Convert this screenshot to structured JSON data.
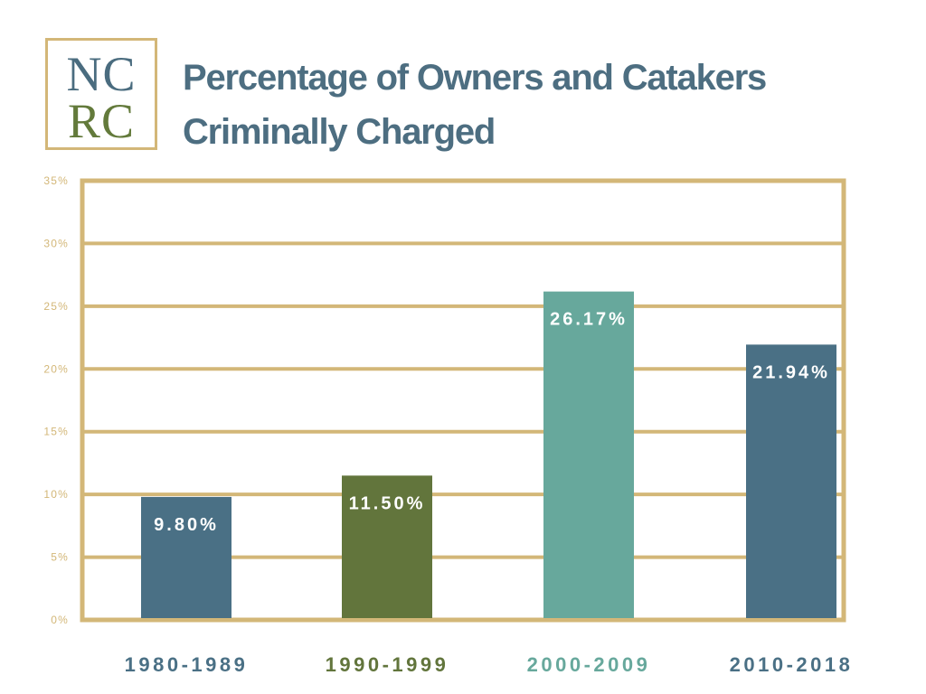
{
  "logo": {
    "line1": "NC",
    "line2": "RC"
  },
  "colors": {
    "gold": "#d3b778",
    "blue": "#4a7085",
    "olive": "#62753c",
    "teal": "#67a89c",
    "title": "#4d6e81",
    "label_white": "#ffffff"
  },
  "chart_data": {
    "type": "bar",
    "title": "Percentage of Owners and Catakers Criminally Charged",
    "title_lines": [
      "Percentage of Owners and Catakers",
      "Criminally Charged"
    ],
    "xlabel": "",
    "ylabel": "",
    "categories": [
      "1980-1989",
      "1990-1999",
      "2000-2009",
      "2010-2018"
    ],
    "values": [
      9.8,
      11.5,
      26.17,
      21.94
    ],
    "value_labels": [
      "9.80%",
      "11.50%",
      "26.17%",
      "21.94%"
    ],
    "bar_colors": [
      "#4a7085",
      "#62753c",
      "#67a89c",
      "#4a7085"
    ],
    "ylim": [
      0,
      35
    ],
    "yticks": [
      0,
      5,
      10,
      15,
      20,
      25,
      30,
      35
    ],
    "ytick_labels": [
      "0%",
      "5%",
      "10%",
      "15%",
      "20%",
      "25%",
      "30%",
      "35%"
    ],
    "grid": true,
    "legend": "none"
  }
}
